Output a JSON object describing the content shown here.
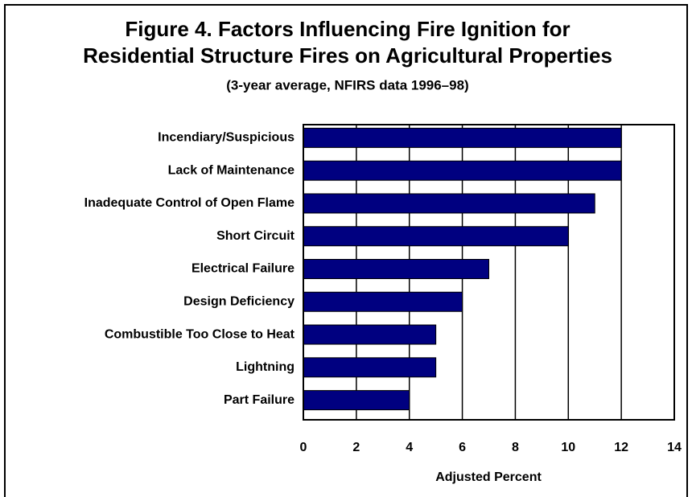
{
  "chart_data": {
    "type": "bar",
    "orientation": "horizontal",
    "title": [
      "Figure 4.  Factors Influencing Fire Ignition for",
      "Residential Structure Fires on Agricultural Properties"
    ],
    "subtitle": "(3-year average, NFIRS data 1996–98)",
    "x_label": "Adjusted Percent",
    "categories": [
      "Incendiary/Suspicious",
      "Lack of Maintenance",
      "Inadequate Control of Open Flame",
      "Short Circuit",
      "Electrical Failure",
      "Design Deficiency",
      "Combustible Too Close to Heat",
      "Lightning",
      "Part Failure"
    ],
    "values": [
      12,
      12,
      11,
      10,
      7,
      6,
      5,
      5,
      4
    ],
    "color": "#000080",
    "xlim": [
      0,
      14
    ],
    "xticks": [
      0,
      2,
      4,
      6,
      8,
      10,
      12,
      14
    ],
    "grid": true
  }
}
